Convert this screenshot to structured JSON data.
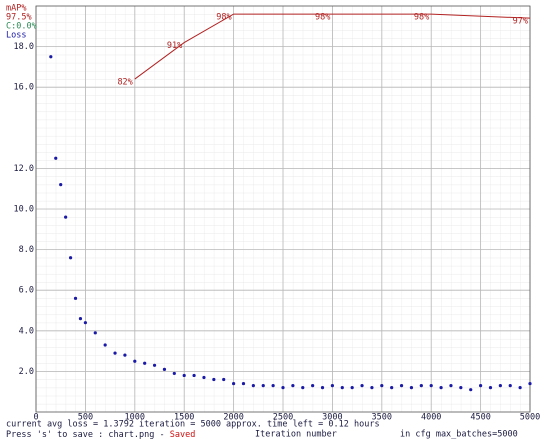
{
  "chart_data": {
    "type": "line",
    "xlabel": "Iteration number",
    "xlim": [
      0,
      5000
    ],
    "ylim": [
      0,
      20
    ],
    "y2lim": [
      0,
      100
    ],
    "xticks": [
      0,
      500,
      1000,
      1500,
      2000,
      2500,
      3000,
      3500,
      4000,
      4500,
      5000
    ],
    "yticks": [
      {
        "value": 2,
        "label": "2.0"
      },
      {
        "value": 4,
        "label": "4.0"
      },
      {
        "value": 6,
        "label": "6.0"
      },
      {
        "value": 8,
        "label": "8.0"
      },
      {
        "value": 10,
        "label": "10.0"
      },
      {
        "value": 12,
        "label": "12.0"
      },
      {
        "value": 16,
        "label": "16.0"
      },
      {
        "value": 18,
        "label": "18.0"
      }
    ],
    "grid": true,
    "series": [
      {
        "name": "Loss",
        "color": "#1a1aa6",
        "style": "dots",
        "x": [
          150,
          200,
          250,
          300,
          350,
          400,
          450,
          500,
          600,
          700,
          800,
          900,
          1000,
          1100,
          1200,
          1300,
          1400,
          1500,
          1600,
          1700,
          1800,
          1900,
          2000,
          2100,
          2200,
          2300,
          2400,
          2500,
          2600,
          2700,
          2800,
          2900,
          3000,
          3100,
          3200,
          3300,
          3400,
          3500,
          3600,
          3700,
          3800,
          3900,
          4000,
          4100,
          4200,
          4300,
          4400,
          4500,
          4600,
          4700,
          4800,
          4900,
          5000
        ],
        "values": [
          17.5,
          12.5,
          11.2,
          9.6,
          7.6,
          5.6,
          4.6,
          4.4,
          3.9,
          3.3,
          2.9,
          2.8,
          2.5,
          2.4,
          2.3,
          2.1,
          1.9,
          1.8,
          1.8,
          1.7,
          1.6,
          1.6,
          1.4,
          1.4,
          1.3,
          1.3,
          1.3,
          1.2,
          1.3,
          1.2,
          1.3,
          1.2,
          1.3,
          1.2,
          1.2,
          1.3,
          1.2,
          1.3,
          1.2,
          1.3,
          1.2,
          1.3,
          1.3,
          1.2,
          1.3,
          1.2,
          1.1,
          1.3,
          1.2,
          1.3,
          1.3,
          1.2,
          1.4
        ]
      },
      {
        "name": "mAP%",
        "color": "#b22222",
        "style": "line",
        "axis": "y2",
        "x": [
          1000,
          1500,
          2000,
          3000,
          4000,
          5000
        ],
        "values": [
          82,
          91,
          98,
          98,
          98,
          97
        ],
        "value_labels": [
          "82%",
          "91%",
          "98%",
          "98%",
          "98%",
          "97%"
        ]
      }
    ],
    "annotations": {
      "best_map": "97.5%",
      "c_label": "C:0.0%",
      "status": "current avg loss = 1.3792    iteration = 5000    approx. time left = 0.12 hours",
      "save_hint": "Press 's' to save : chart.png - ",
      "saved": "Saved",
      "max_batches": "in cfg max_batches=5000"
    }
  }
}
